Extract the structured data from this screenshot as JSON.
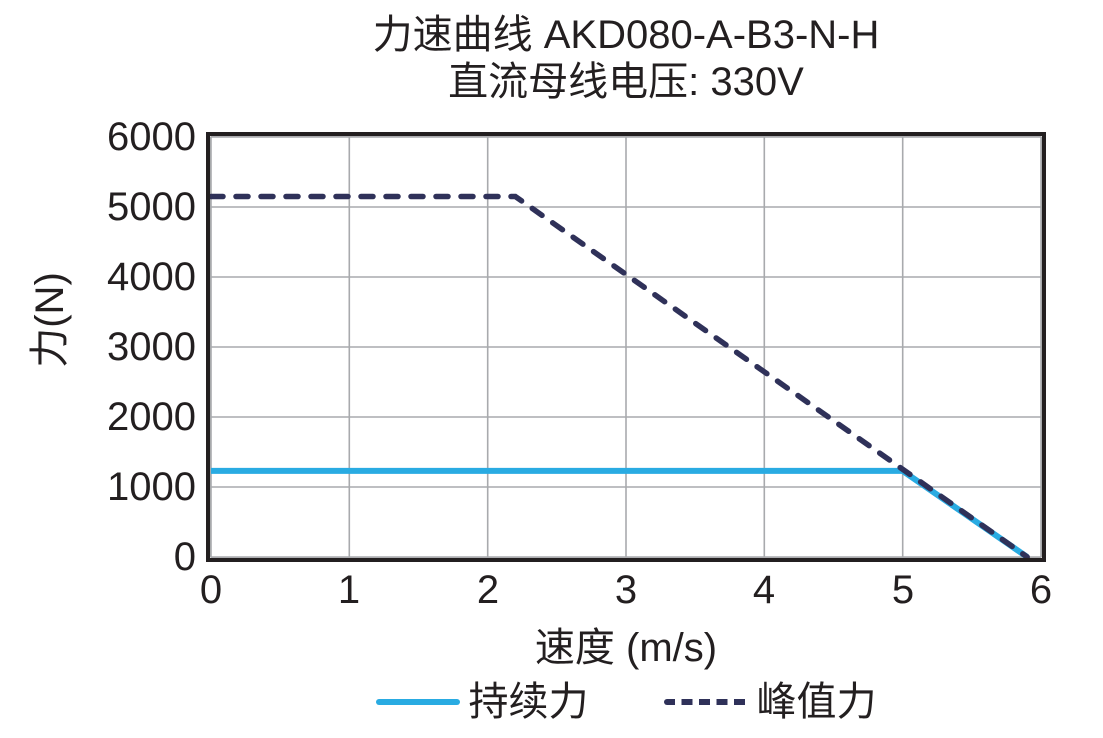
{
  "figure": {
    "background": "#ffffff",
    "text_color": "#231f20",
    "grid_color": "#a8aaad",
    "frame_color": "#231f20"
  },
  "chart_data": {
    "type": "line",
    "title": "力速曲线 AKD080-A-B3-N-H",
    "subtitle": "直流母线电压: 330V",
    "xlabel": "速度 (m/s)",
    "ylabel": "力(N)",
    "xlim": [
      0,
      6
    ],
    "ylim": [
      0,
      6000
    ],
    "x_ticks": [
      0,
      1,
      2,
      3,
      4,
      5,
      6
    ],
    "y_ticks": [
      0,
      1000,
      2000,
      3000,
      4000,
      5000,
      6000
    ],
    "grid": true,
    "legend_position": "bottom",
    "series": [
      {
        "name": "持续力",
        "style": "solid",
        "color": "#29abe2",
        "width": 6,
        "points": [
          [
            0,
            1230
          ],
          [
            5.0,
            1230
          ],
          [
            5.9,
            0
          ]
        ]
      },
      {
        "name": "峰值力",
        "style": "dashed",
        "color": "#2f3159",
        "width": 5.5,
        "points": [
          [
            0,
            5150
          ],
          [
            2.2,
            5150
          ],
          [
            5.9,
            0
          ]
        ]
      }
    ]
  }
}
